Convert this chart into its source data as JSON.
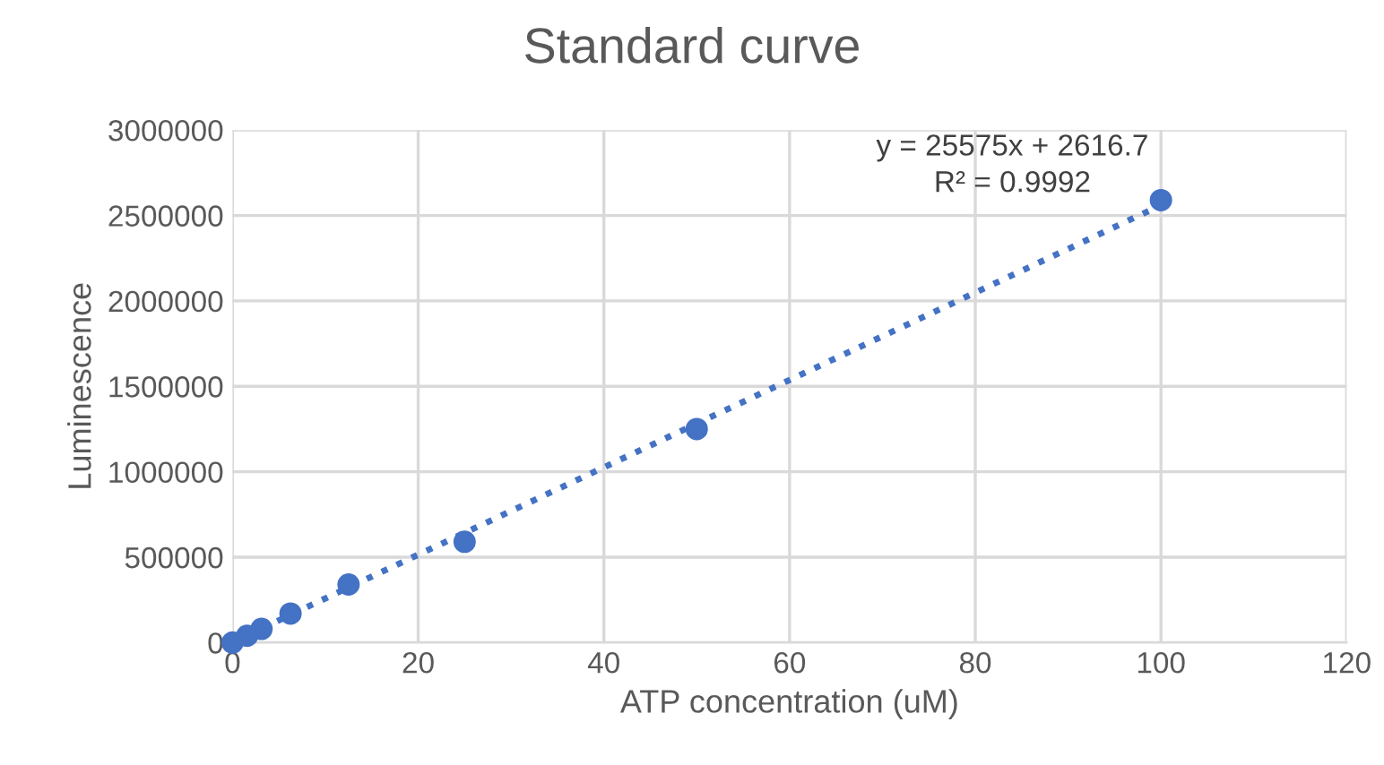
{
  "chart_data": {
    "type": "scatter",
    "title": "Standard curve",
    "xlabel": "ATP concentration (uM)",
    "ylabel": "Luminescence",
    "series": [
      {
        "color": "#4472c4",
        "marker": "circle",
        "x": [
          100,
          50,
          25,
          12.5,
          6.25,
          3.125,
          1.5625,
          0
        ],
        "values": [
          2590000,
          1250000,
          590000,
          340000,
          170000,
          80000,
          40000,
          0
        ]
      },
      {
        "type": "line",
        "color": "#4472c4",
        "marker": "none",
        "line_style": "dotted",
        "x": [
          0,
          100
        ],
        "values": [
          3000,
          2560000
        ]
      }
    ],
    "annotations": [
      "y = 25575x + 2616.7\nR² = 0.9992"
    ],
    "xlim": [
      0,
      120
    ],
    "xticks": [
      0,
      20,
      40,
      60,
      80,
      100,
      120
    ],
    "ylim": [
      0,
      3000000
    ],
    "yticks": [
      0,
      500000,
      1000000,
      1500000,
      2000000,
      2500000,
      3000000
    ],
    "grid": true
  }
}
